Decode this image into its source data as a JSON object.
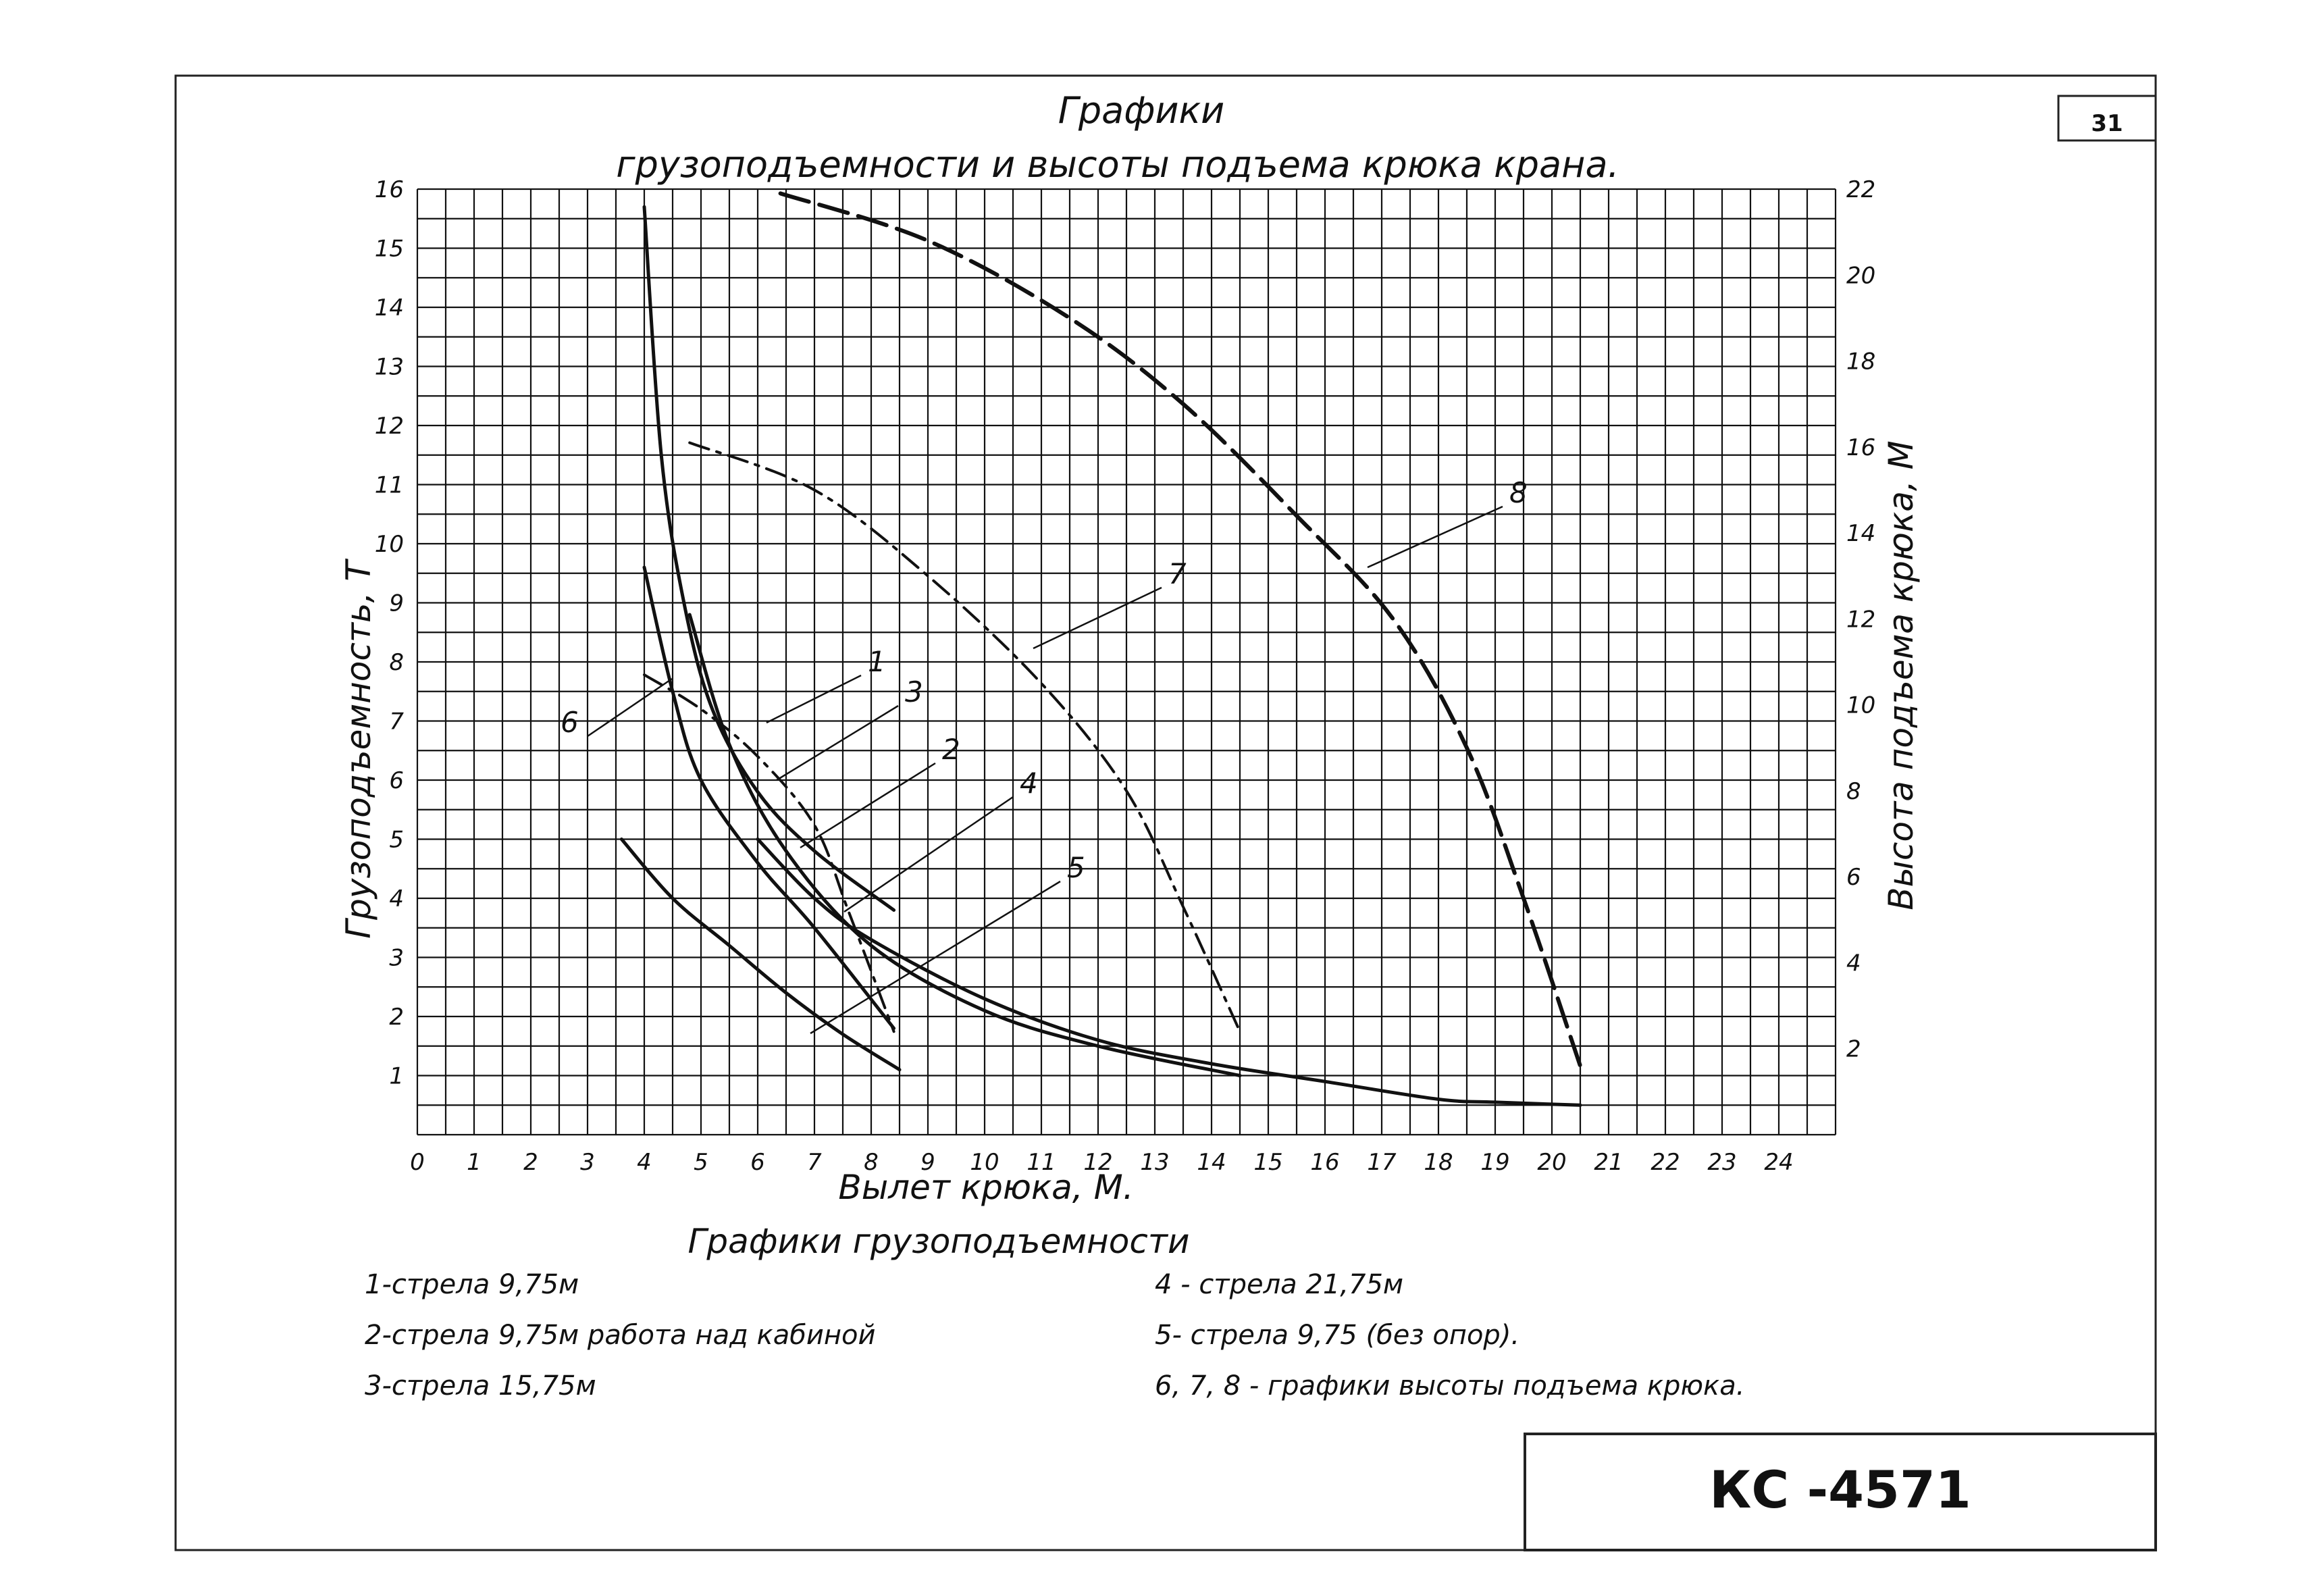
{
  "sheet": {
    "page_number": "31",
    "code": "КС -4571"
  },
  "legend": {
    "heading": "Графики грузоподъемности",
    "items": [
      "1-стрела 9,75м",
      "2-стрела 9,75м работа над кабиной",
      "3-стрела 15,75м",
      "4 - стрела 21,75м",
      "5- стрела 9,75 (без опор).",
      "6, 7, 8 - графики высоты подъема крюка."
    ]
  },
  "chart_data": {
    "type": "line",
    "title": "Графики",
    "subtitle": "грузоподъемности и высоты подъема крюка крана.",
    "xlabel": "Вылет крюка, М.",
    "ylabel": "Грузоподъемность, Т",
    "y2label": "Высота подъема крюка, М",
    "xlim": [
      0,
      25
    ],
    "ylim": [
      0,
      16
    ],
    "y2lim": [
      0,
      22
    ],
    "xticks": [
      "0",
      "1",
      "2",
      "3",
      "4",
      "5",
      "6",
      "7",
      "8",
      "9",
      "10",
      "11",
      "12",
      "13",
      "14",
      "15",
      "16",
      "17",
      "18",
      "19",
      "20",
      "21",
      "22",
      "23",
      "24"
    ],
    "yticks": [
      "1",
      "2",
      "3",
      "4",
      "5",
      "6",
      "7",
      "8",
      "9",
      "10",
      "11",
      "12",
      "13",
      "14",
      "15",
      "16"
    ],
    "y2ticks": [
      "2",
      "4",
      "6",
      "8",
      "10",
      "12",
      "14",
      "16",
      "18",
      "20",
      "22"
    ],
    "grid": true,
    "series": [
      {
        "name": "1",
        "axis": "left",
        "style": "solid",
        "x": [
          4,
          4.3,
          4.7,
          5.2,
          6,
          7,
          8.4
        ],
        "y": [
          15.7,
          11.5,
          9,
          7.2,
          5.8,
          4.8,
          3.8
        ]
      },
      {
        "name": "2",
        "axis": "left",
        "style": "solid",
        "x": [
          4,
          4.5,
          5,
          6,
          7,
          8.4
        ],
        "y": [
          9.6,
          7.5,
          6,
          4.6,
          3.5,
          1.8
        ]
      },
      {
        "name": "3",
        "axis": "left",
        "style": "solid",
        "x": [
          4.8,
          5.5,
          6.5,
          8,
          10,
          12,
          14.5
        ],
        "y": [
          8.8,
          6.6,
          4.8,
          3.2,
          2.1,
          1.5,
          1.0
        ]
      },
      {
        "name": "4",
        "axis": "left",
        "style": "solid",
        "x": [
          6,
          7,
          8,
          10,
          12,
          14,
          16,
          18,
          19,
          20.5
        ],
        "y": [
          5.0,
          4.0,
          3.3,
          2.3,
          1.6,
          1.2,
          0.9,
          0.6,
          0.55,
          0.5
        ]
      },
      {
        "name": "5",
        "axis": "left",
        "style": "solid",
        "x": [
          3.6,
          4.5,
          5.5,
          6.5,
          7.5,
          8.5
        ],
        "y": [
          5.0,
          4.0,
          3.2,
          2.4,
          1.7,
          1.1
        ]
      },
      {
        "name": "6",
        "axis": "right",
        "style": "dash-dot",
        "x": [
          4,
          5,
          6,
          7,
          7.6,
          8.4
        ],
        "y": [
          10.7,
          9.9,
          8.8,
          7.2,
          5.2,
          2.4
        ]
      },
      {
        "name": "7",
        "axis": "right",
        "style": "dash-dot",
        "x": [
          4.8,
          7,
          9,
          11,
          12.5,
          13.5,
          14.5
        ],
        "y": [
          16.1,
          15,
          13,
          10.5,
          8,
          5.3,
          2.4
        ]
      },
      {
        "name": "8",
        "axis": "right",
        "style": "dash",
        "x": [
          6.4,
          9,
          11.5,
          13.5,
          15.5,
          17.2,
          18.5,
          19.5,
          20.5
        ],
        "y": [
          21.9,
          20.8,
          19,
          17,
          14.4,
          12,
          9,
          5.5,
          1.6
        ]
      }
    ]
  }
}
